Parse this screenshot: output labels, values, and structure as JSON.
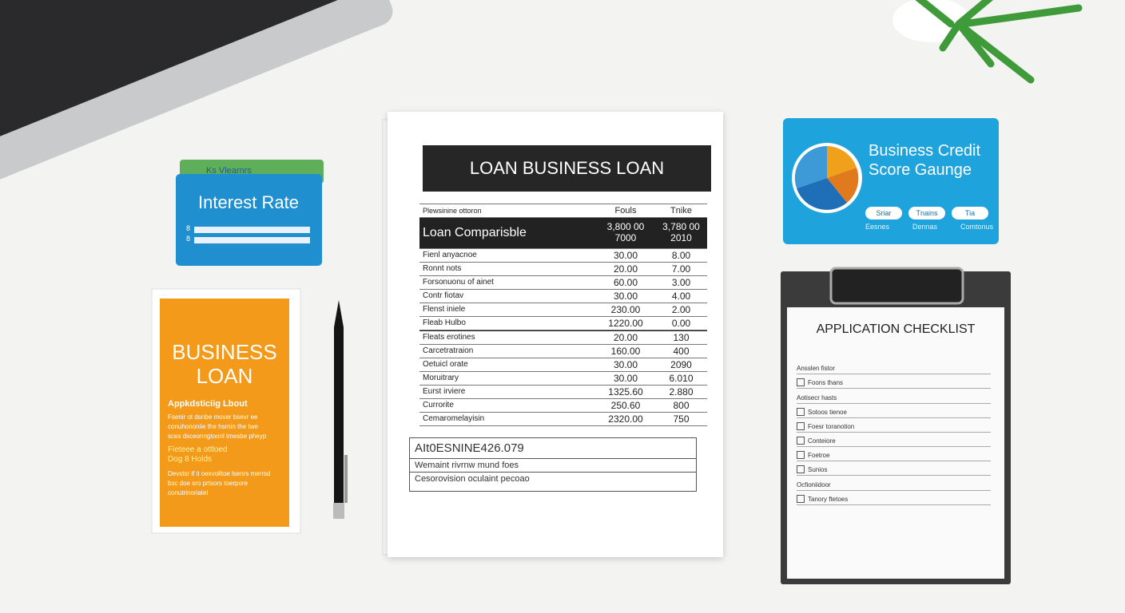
{
  "interest_card": {
    "tab": "Ks Vlearnrs",
    "title": "Interest Rate",
    "marks": [
      "8",
      "8"
    ]
  },
  "business_card": {
    "title": "BUSINESS LOAN",
    "subtitle": "Appkdsticiig Lbout",
    "lines": [
      "Fsenir ot dsnbe mover bsevr ee",
      "conuhononiie the hsrnin the twe",
      "sces dsceonngtoonl tmesbe pheyp"
    ],
    "highlight": [
      "Fieteee a ottloed",
      "Dog 8 Holds"
    ],
    "footer": [
      "Devstsr if it oexvolitoe lsenrs merrsd",
      "bsc doe sro prtsors toerpore",
      "conutrinoriatel"
    ]
  },
  "document": {
    "title": "LOAN BUSINESS LOAN",
    "table": {
      "header": [
        "Plewsinine ottoron",
        "Fouls",
        "Tnike"
      ],
      "section": {
        "label": "Loan Comparisble",
        "col1": [
          "3,800 00",
          "7000"
        ],
        "col2": [
          "3,780 00",
          "2010"
        ]
      },
      "rows": [
        [
          "Fienl anyacnoe",
          "30.00",
          "8.00"
        ],
        [
          "Ronnt nots",
          "20.00",
          "7.00"
        ],
        [
          "Forsonuonu of ainet",
          "60.00",
          "3.00"
        ],
        [
          "Contr fiotav",
          "30.00",
          "4.00"
        ],
        [
          "Flenst iniele",
          "230.00",
          "2.00"
        ],
        [
          "Fleab Hulbo",
          "1220.00",
          "0.00"
        ],
        [
          "Fleats erotines",
          "20.00",
          "130"
        ],
        [
          "Carcetratraion",
          "160.00",
          "400"
        ],
        [
          "Oetuicl orate",
          "30.00",
          "2090"
        ],
        [
          "Moruitrary",
          "30.00",
          "6.010"
        ],
        [
          "Eurst irviere",
          "1325.60",
          "2.880"
        ],
        [
          "Currorite",
          "250.60",
          "800"
        ],
        [
          "Cemaromelayisin",
          "2320.00",
          "750"
        ]
      ]
    },
    "summary": {
      "title": "AIt0ESNINE426.079",
      "lines": [
        "Wemaint rivrnw mund foes",
        "Cesorovision oculaint pecoao"
      ]
    }
  },
  "credit_card": {
    "title": "Business Credit Score Gaunge",
    "pills": [
      "Sriar",
      "Tnains",
      "Tia"
    ],
    "labels": [
      "Eesnes",
      "Dennas",
      "Comtonus"
    ]
  },
  "checklist": {
    "title": "APPLICATION CHECKLIST",
    "items": [
      {
        "text": "Ansslen fistor",
        "heading": true
      },
      {
        "text": "Foons thans",
        "heading": false
      },
      {
        "text": "Aotisecr hasts",
        "heading": true
      },
      {
        "text": "Sotoos tienoe",
        "heading": false
      },
      {
        "text": "Foesr toranotion",
        "heading": false
      },
      {
        "text": "Conteiore",
        "heading": false
      },
      {
        "text": "Foetroe",
        "heading": false
      },
      {
        "text": "Sunios",
        "heading": false
      },
      {
        "text": "Ocfioniidoor",
        "heading": true
      },
      {
        "text": "Tanory ftetoes",
        "heading": false
      }
    ]
  }
}
